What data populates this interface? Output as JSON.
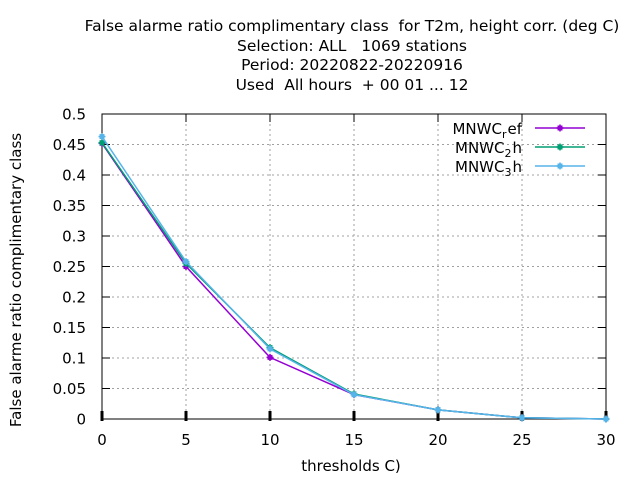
{
  "chart_data": {
    "type": "line",
    "title_lines": [
      "False alarme ratio complimentary class  for T2m, height corr. (deg C)",
      "Selection: ALL   1069 stations",
      "Period: 20220822-20220916",
      "Used  All hours  + 00 01 ... 12"
    ],
    "xlabel": "thresholds C)",
    "ylabel": "False alarme ratio complimentary class",
    "xlim": [
      0,
      30
    ],
    "ylim": [
      0,
      0.5
    ],
    "x_ticks": [
      "0",
      "5",
      "10",
      "15",
      "20",
      "25",
      "30"
    ],
    "y_ticks": [
      "0",
      "0.05",
      "0.1",
      "0.15",
      "0.2",
      "0.25",
      "0.3",
      "0.35",
      "0.4",
      "0.45",
      "0.5"
    ],
    "grid": true,
    "legend_position": "top-right",
    "series": [
      {
        "name": "MNWC_ref",
        "label_base": "MNWC",
        "label_sub": "r",
        "label_rest": "ef",
        "color": "#9400d3",
        "x": [
          0,
          5,
          10,
          15,
          20,
          25,
          30
        ],
        "y": [
          0.452,
          0.25,
          0.101,
          0.04,
          0.015,
          0.002,
          0.0
        ]
      },
      {
        "name": "MNWC_2h",
        "label_base": "MNWC",
        "label_sub": "2",
        "label_rest": "h",
        "color": "#009e73",
        "x": [
          0,
          5,
          10,
          15,
          20,
          25,
          30
        ],
        "y": [
          0.453,
          0.255,
          0.117,
          0.041,
          0.015,
          0.002,
          0.0
        ]
      },
      {
        "name": "MNWC_3h",
        "label_base": "MNWC",
        "label_sub": "3",
        "label_rest": "h",
        "color": "#56b4e9",
        "x": [
          0,
          5,
          10,
          15,
          20,
          25,
          30
        ],
        "y": [
          0.463,
          0.258,
          0.115,
          0.04,
          0.015,
          0.002,
          0.0
        ]
      }
    ]
  }
}
